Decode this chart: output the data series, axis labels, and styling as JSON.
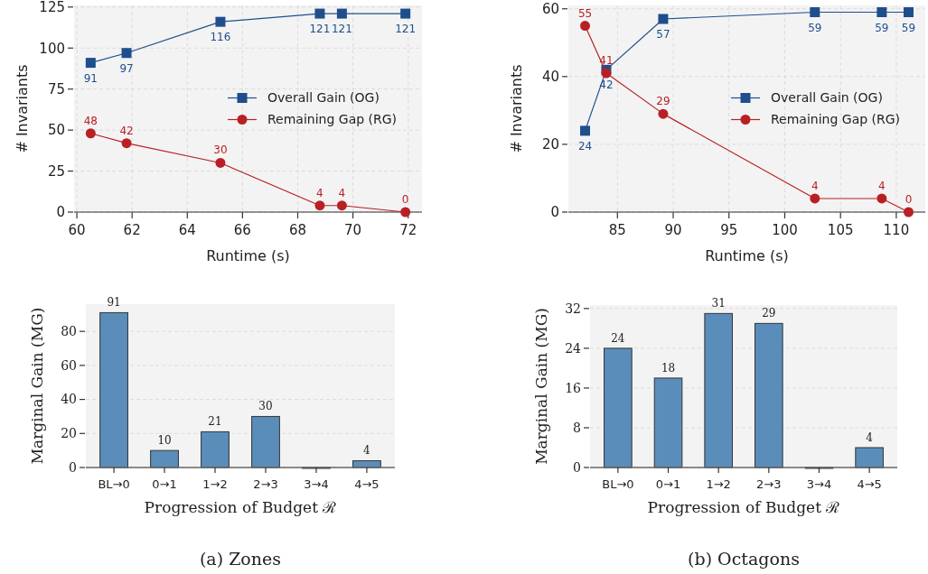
{
  "chart_data": [
    {
      "type": "line",
      "xlabel": "Runtime (s)",
      "ylabel": "# Invariants",
      "xlim": [
        59.9,
        72.5
      ],
      "xticks": [
        60,
        62,
        64,
        66,
        68,
        70,
        72
      ],
      "ylim": [
        0,
        126
      ],
      "yticks": [
        0,
        25,
        50,
        75,
        100,
        125
      ],
      "grid": true,
      "legend": "right",
      "data_labels": true,
      "line_style": "solid",
      "series": [
        {
          "name": "Overall Gain (OG)",
          "color": "#1f4e8c",
          "marker": "square",
          "x": [
            60.5,
            61.8,
            65.2,
            68.8,
            69.6,
            71.9
          ],
          "values": [
            91,
            97,
            116,
            121,
            121,
            121
          ]
        },
        {
          "name": "Remaining Gap (RG)",
          "color": "#b82025",
          "marker": "circle",
          "x": [
            60.5,
            61.8,
            65.2,
            68.8,
            69.6,
            71.9
          ],
          "values": [
            48,
            42,
            30,
            4,
            4,
            0
          ]
        }
      ]
    },
    {
      "type": "line",
      "xlabel": "Runtime (s)",
      "ylabel": "# Invariants",
      "xlim": [
        80.6,
        112.6
      ],
      "xticks": [
        85,
        90,
        95,
        100,
        105,
        110
      ],
      "ylim": [
        0,
        61
      ],
      "yticks": [
        0,
        20,
        40,
        60
      ],
      "grid": true,
      "legend": "right",
      "data_labels": true,
      "line_style": "solid",
      "series": [
        {
          "name": "Overall Gain (OG)",
          "color": "#1f4e8c",
          "marker": "square",
          "x": [
            82.1,
            84,
            89.1,
            102.7,
            108.7,
            111.1
          ],
          "values": [
            24,
            42,
            57,
            59,
            59,
            59
          ]
        },
        {
          "name": "Remaining Gap (RG)",
          "color": "#b82025",
          "marker": "circle",
          "x": [
            82.1,
            84,
            89.1,
            102.7,
            108.7,
            111.1
          ],
          "values": [
            55,
            41,
            29,
            4,
            4,
            0
          ]
        }
      ]
    },
    {
      "type": "bar",
      "xlabel": "Progression of Budget ℛ",
      "ylabel": "Marginal Gain (MG)",
      "categories": [
        "BL→0",
        "0→1",
        "1→2",
        "2→3",
        "3→4",
        "4→5"
      ],
      "values": [
        91,
        10,
        21,
        30,
        0,
        4
      ],
      "value_labels": [
        "91",
        "10",
        "21",
        "30",
        null,
        "4"
      ],
      "color": "#5b8dbb",
      "ylim": [
        0,
        96
      ],
      "yticks": [
        0,
        20,
        40,
        60,
        80
      ],
      "grid": "y",
      "annotations": [
        "(a) Zones"
      ]
    },
    {
      "type": "bar",
      "xlabel": "Progression of Budget ℛ",
      "ylabel": "Marginal Gain (MG)",
      "categories": [
        "BL→0",
        "0→1",
        "1→2",
        "2→3",
        "3→4",
        "4→5"
      ],
      "values": [
        24,
        18,
        31,
        29,
        0,
        4
      ],
      "value_labels": [
        "24",
        "18",
        "31",
        "29",
        null,
        "4"
      ],
      "color": "#5b8dbb",
      "ylim": [
        0,
        32.7
      ],
      "yticks": [
        0,
        8,
        16,
        24,
        32
      ],
      "grid": "y",
      "annotations": [
        "(b) Octagons"
      ]
    }
  ]
}
